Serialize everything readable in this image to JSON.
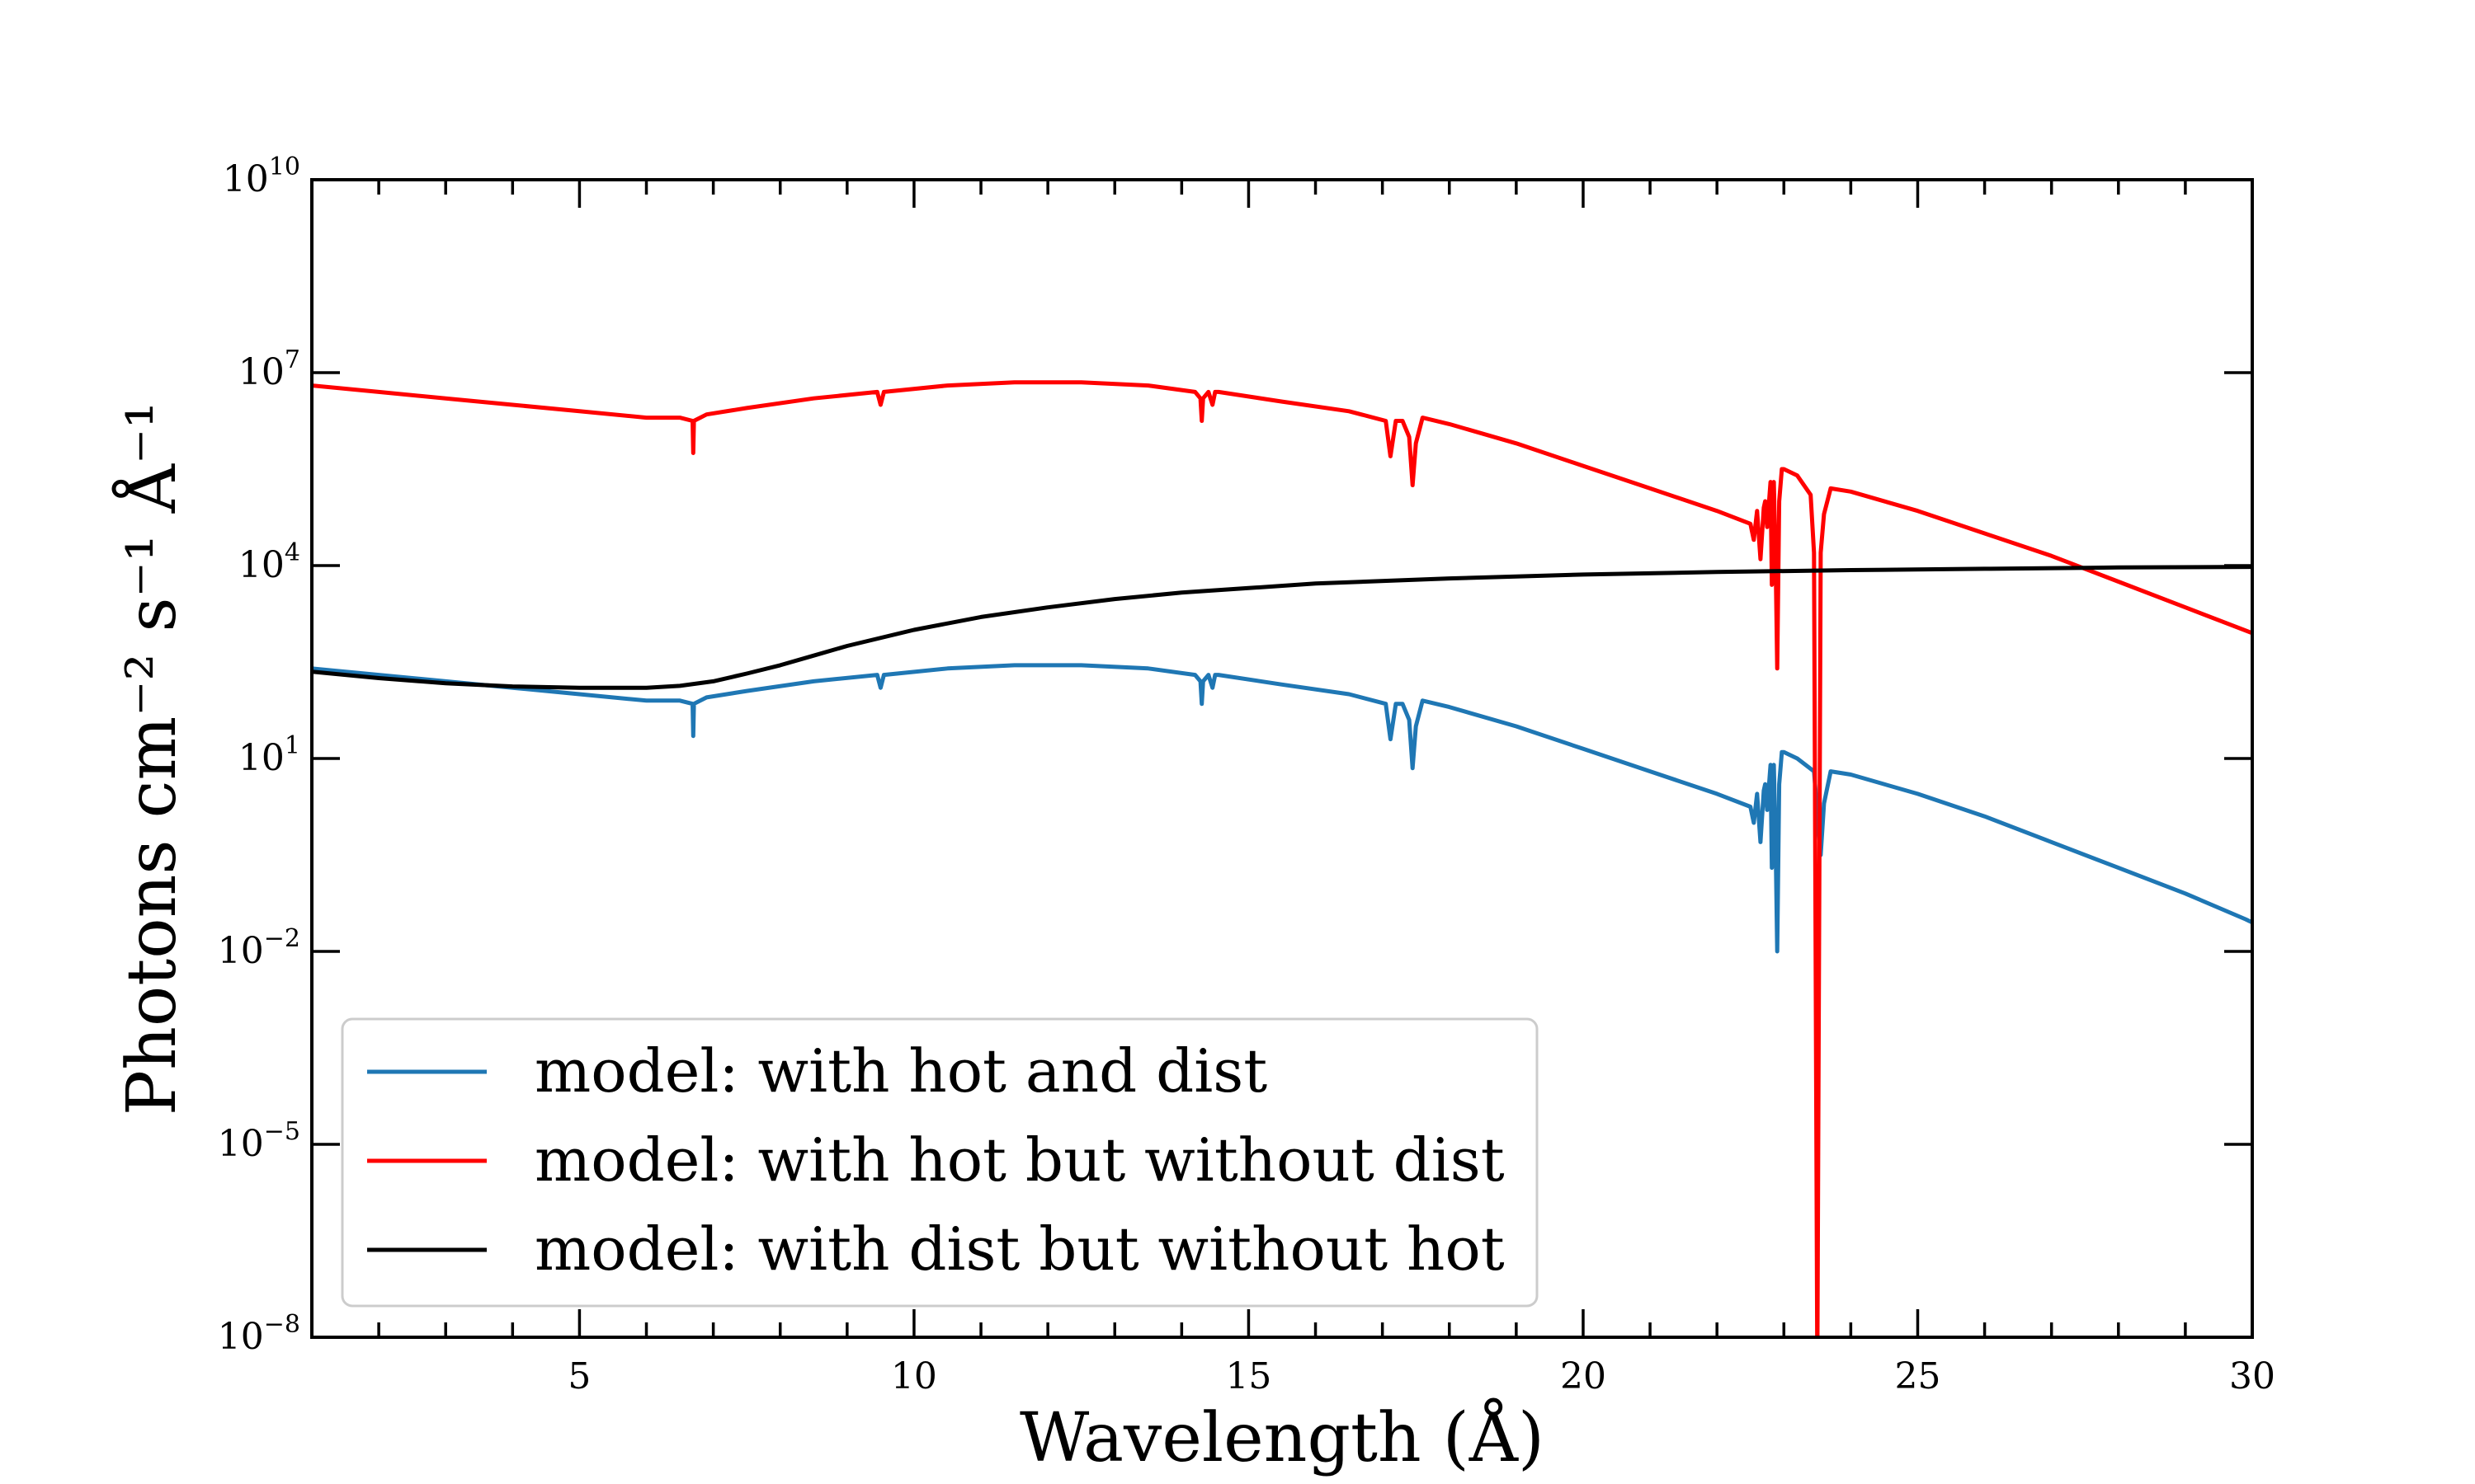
{
  "chart_data": {
    "type": "line",
    "xlabel": "Wavelength (Å)",
    "ylabel": "Photons cm⁻² s⁻¹ Å⁻¹",
    "xlim": [
      1,
      30
    ],
    "ylim_log10": [
      -8,
      10
    ],
    "yscale": "log",
    "x_ticks": [
      5,
      10,
      15,
      20,
      25,
      30
    ],
    "y_ticks": [
      {
        "base": "10",
        "exp": "−8",
        "value_log10": -8
      },
      {
        "base": "10",
        "exp": "−5",
        "value_log10": -5
      },
      {
        "base": "10",
        "exp": "−2",
        "value_log10": -2
      },
      {
        "base": "10",
        "exp": "1",
        "value_log10": 1
      },
      {
        "base": "10",
        "exp": "4",
        "value_log10": 4
      },
      {
        "base": "10",
        "exp": "7",
        "value_log10": 7
      },
      {
        "base": "10",
        "exp": "10",
        "value_log10": 10
      }
    ],
    "grid": false,
    "legend_position": "lower-left",
    "series": [
      {
        "name": "model: with hot and dist",
        "color": "#1f77b4",
        "x": [
          1.0,
          2.0,
          3.0,
          4.0,
          5.0,
          6.0,
          6.5,
          6.69,
          6.7,
          6.71,
          6.9,
          7.5,
          8.5,
          9.45,
          9.5,
          9.55,
          10.5,
          11.5,
          12.5,
          13.5,
          14.2,
          14.28,
          14.3,
          14.32,
          14.4,
          14.46,
          14.5,
          14.55,
          15.5,
          16.5,
          17.05,
          17.12,
          17.2,
          17.3,
          17.4,
          17.45,
          17.5,
          17.6,
          18.0,
          19.0,
          20.0,
          21.0,
          22.0,
          22.5,
          22.55,
          22.6,
          22.65,
          22.7,
          22.72,
          22.75,
          22.8,
          22.82,
          22.85,
          22.88,
          22.9,
          22.93,
          22.97,
          23.0,
          23.2,
          23.45,
          23.55,
          23.6,
          23.7,
          24.0,
          25.0,
          26.0,
          27.0,
          28.0,
          29.0,
          29.9,
          30.0
        ],
        "y_log10": [
          2.4,
          2.3,
          2.2,
          2.1,
          2.0,
          1.9,
          1.9,
          1.85,
          1.35,
          1.85,
          1.95,
          2.05,
          2.2,
          2.3,
          2.1,
          2.3,
          2.4,
          2.45,
          2.45,
          2.4,
          2.3,
          2.2,
          1.85,
          2.2,
          2.3,
          2.1,
          2.3,
          2.3,
          2.15,
          2.0,
          1.85,
          1.3,
          1.85,
          1.85,
          1.6,
          0.85,
          1.5,
          1.9,
          1.8,
          1.5,
          1.15,
          0.8,
          0.45,
          0.25,
          0.0,
          0.45,
          -0.3,
          0.5,
          0.6,
          0.2,
          0.9,
          -0.7,
          0.9,
          -0.5,
          -2.0,
          0.6,
          1.1,
          1.1,
          1.0,
          0.8,
          -0.5,
          0.3,
          0.8,
          0.75,
          0.45,
          0.1,
          -0.3,
          -0.7,
          -1.1,
          -1.5,
          -1.55
        ]
      },
      {
        "name": "model: with hot but without dist",
        "color": "#ff0000",
        "x": [
          1.0,
          2.0,
          3.0,
          4.0,
          5.0,
          6.0,
          6.5,
          6.69,
          6.7,
          6.71,
          6.9,
          7.5,
          8.5,
          9.45,
          9.5,
          9.55,
          10.5,
          11.5,
          12.5,
          13.5,
          14.2,
          14.28,
          14.3,
          14.32,
          14.4,
          14.46,
          14.5,
          14.55,
          15.5,
          16.5,
          17.05,
          17.12,
          17.2,
          17.3,
          17.4,
          17.45,
          17.5,
          17.6,
          18.0,
          19.0,
          20.0,
          21.0,
          22.0,
          22.5,
          22.55,
          22.6,
          22.65,
          22.7,
          22.72,
          22.75,
          22.8,
          22.82,
          22.85,
          22.88,
          22.9,
          22.93,
          22.97,
          23.0,
          23.2,
          23.4,
          23.45,
          23.5,
          23.55,
          23.6,
          23.7,
          24.0,
          25.0,
          26.0,
          27.0,
          28.0,
          29.0,
          30.0
        ],
        "y_log10": [
          6.8,
          6.7,
          6.6,
          6.5,
          6.4,
          6.3,
          6.3,
          6.25,
          5.75,
          6.25,
          6.35,
          6.45,
          6.6,
          6.7,
          6.5,
          6.7,
          6.8,
          6.85,
          6.85,
          6.8,
          6.7,
          6.6,
          6.25,
          6.6,
          6.7,
          6.5,
          6.7,
          6.7,
          6.55,
          6.4,
          6.25,
          5.7,
          6.25,
          6.25,
          6.0,
          5.25,
          5.9,
          6.3,
          6.2,
          5.9,
          5.55,
          5.2,
          4.85,
          4.65,
          4.4,
          4.85,
          4.1,
          4.9,
          5.0,
          4.6,
          5.3,
          3.7,
          5.3,
          3.9,
          2.4,
          5.0,
          5.5,
          5.5,
          5.4,
          5.1,
          4.2,
          -8.5,
          4.2,
          4.8,
          5.2,
          5.15,
          4.85,
          4.5,
          4.15,
          3.75,
          3.35,
          2.95
        ]
      },
      {
        "name": "model: with dist but without hot",
        "color": "#000000",
        "x": [
          1.0,
          2.0,
          3.0,
          4.0,
          5.0,
          6.0,
          6.5,
          7.0,
          7.5,
          8.0,
          8.5,
          9.0,
          10.0,
          11.0,
          12.0,
          13.0,
          14.0,
          15.0,
          16.0,
          18.0,
          20.0,
          22.0,
          24.0,
          26.0,
          28.0,
          30.0
        ],
        "y_log10": [
          2.35,
          2.25,
          2.17,
          2.12,
          2.1,
          2.1,
          2.13,
          2.2,
          2.32,
          2.45,
          2.6,
          2.75,
          3.0,
          3.2,
          3.35,
          3.48,
          3.58,
          3.65,
          3.72,
          3.8,
          3.86,
          3.9,
          3.93,
          3.95,
          3.97,
          3.98
        ]
      }
    ]
  }
}
